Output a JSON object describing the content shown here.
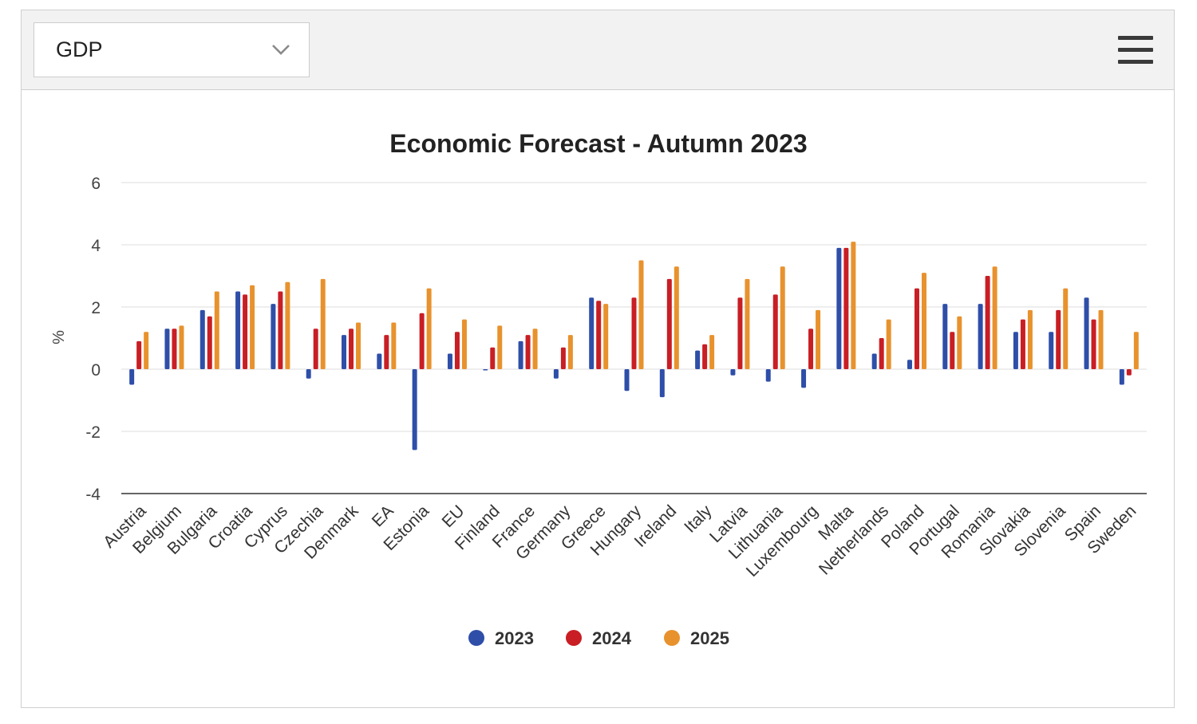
{
  "dropdown": {
    "value": "GDP"
  },
  "menu": {
    "icon": "hamburger-menu-icon"
  },
  "colors": {
    "2023": "#2e4ea8",
    "2024": "#c81e24",
    "2025": "#e8922d"
  },
  "chart_data": {
    "type": "bar",
    "title": "Economic Forecast - Autumn 2023",
    "xlabel": "",
    "ylabel": "%",
    "ylim": [
      -4,
      6
    ],
    "yticks": [
      "6",
      "4",
      "2",
      "0",
      "-2",
      "-4"
    ],
    "grid": true,
    "legend_position": "bottom-center",
    "categories": [
      "Austria",
      "Belgium",
      "Bulgaria",
      "Croatia",
      "Cyprus",
      "Czechia",
      "Denmark",
      "EA",
      "Estonia",
      "EU",
      "Finland",
      "France",
      "Germany",
      "Greece",
      "Hungary",
      "Ireland",
      "Italy",
      "Latvia",
      "Lithuania",
      "Luxembourg",
      "Malta",
      "Netherlands",
      "Poland",
      "Portugal",
      "Romania",
      "Slovakia",
      "Slovenia",
      "Spain",
      "Sweden"
    ],
    "series": [
      {
        "name": "2023",
        "values": [
          -0.5,
          1.3,
          1.9,
          2.5,
          2.1,
          -0.3,
          1.1,
          0.5,
          -2.6,
          0.5,
          0.0,
          0.9,
          -0.3,
          2.3,
          -0.7,
          -0.9,
          0.6,
          -0.2,
          -0.4,
          -0.6,
          3.9,
          0.5,
          0.3,
          2.1,
          2.1,
          1.2,
          1.2,
          2.3,
          -0.5
        ]
      },
      {
        "name": "2024",
        "values": [
          0.9,
          1.3,
          1.7,
          2.4,
          2.5,
          1.3,
          1.3,
          1.1,
          1.8,
          1.2,
          0.7,
          1.1,
          0.7,
          2.2,
          2.3,
          2.9,
          0.8,
          2.3,
          2.4,
          1.3,
          3.9,
          1.0,
          2.6,
          1.2,
          3.0,
          1.6,
          1.9,
          1.6,
          -0.2
        ]
      },
      {
        "name": "2025",
        "values": [
          1.2,
          1.4,
          2.5,
          2.7,
          2.8,
          2.9,
          1.5,
          1.5,
          2.6,
          1.6,
          1.4,
          1.3,
          1.1,
          2.1,
          3.5,
          3.3,
          1.1,
          2.9,
          3.3,
          1.9,
          4.1,
          1.6,
          3.1,
          1.7,
          3.3,
          1.9,
          2.6,
          1.9,
          1.2
        ]
      }
    ]
  }
}
